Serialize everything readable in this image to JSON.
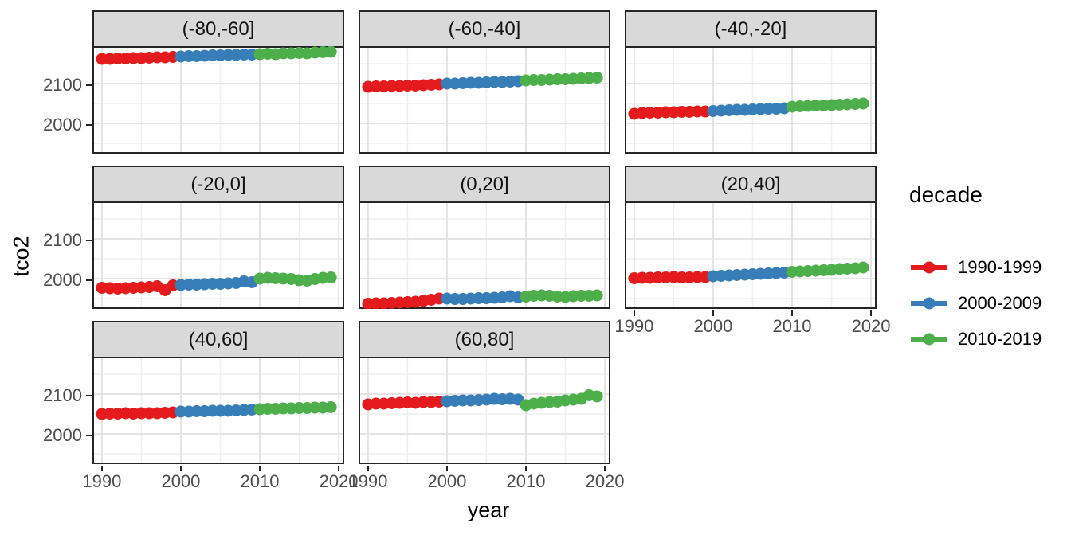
{
  "chart_data": {
    "type": "scatter",
    "title": "",
    "xlabel": "year",
    "ylabel": "tco2",
    "grid": true,
    "legend": {
      "title": "decade",
      "position": "right"
    },
    "xlim": [
      1988.8,
      2020.7
    ],
    "ylim": [
      1924,
      2194
    ],
    "x_ticks": [
      {
        "value": 1990,
        "label": "1990"
      },
      {
        "value": 2000,
        "label": "2000"
      },
      {
        "value": 2010,
        "label": "2010"
      },
      {
        "value": 2020,
        "label": "2020"
      }
    ],
    "y_ticks": [
      {
        "value": 2100,
        "label": "2100"
      },
      {
        "value": 2000,
        "label": "2000"
      }
    ],
    "x_minor_breaks": [
      1995,
      2005,
      2015
    ],
    "y_minor_breaks": [
      1950,
      2050,
      2150
    ],
    "years": [
      1990,
      1991,
      1992,
      1993,
      1994,
      1995,
      1996,
      1997,
      1998,
      1999,
      2000,
      2001,
      2002,
      2003,
      2004,
      2005,
      2006,
      2007,
      2008,
      2009,
      2010,
      2011,
      2012,
      2013,
      2014,
      2015,
      2016,
      2017,
      2018,
      2019
    ],
    "decades": [
      {
        "label": "1990-1999",
        "start": 1990,
        "end": 1999,
        "color": "#E41A1C"
      },
      {
        "label": "2000-2009",
        "start": 2000,
        "end": 2009,
        "color": "#377EB8"
      },
      {
        "label": "2010-2019",
        "start": 2010,
        "end": 2019,
        "color": "#4DAF4A"
      }
    ],
    "facets": [
      {
        "label": "(-80,-60]",
        "values": [
          2162,
          2162,
          2163,
          2163,
          2164,
          2164,
          2165,
          2166,
          2166,
          2167,
          2168,
          2169,
          2169,
          2170,
          2171,
          2171,
          2172,
          2172,
          2173,
          2173,
          2174,
          2175,
          2174,
          2176,
          2176,
          2177,
          2176,
          2178,
          2179,
          2180
        ]
      },
      {
        "label": "(-60,-40]",
        "values": [
          2092,
          2093,
          2093,
          2094,
          2094,
          2095,
          2095,
          2096,
          2097,
          2098,
          2100,
          2100,
          2101,
          2102,
          2102,
          2103,
          2104,
          2104,
          2105,
          2106,
          2108,
          2109,
          2109,
          2110,
          2111,
          2111,
          2112,
          2113,
          2114,
          2115
        ]
      },
      {
        "label": "(-40,-20]",
        "values": [
          2024,
          2026,
          2027,
          2027,
          2028,
          2028,
          2029,
          2029,
          2030,
          2030,
          2031,
          2032,
          2033,
          2034,
          2034,
          2035,
          2036,
          2037,
          2037,
          2038,
          2042,
          2043,
          2044,
          2045,
          2045,
          2046,
          2047,
          2048,
          2049,
          2050
        ]
      },
      {
        "label": "(-20,0]",
        "values": [
          1977,
          1976,
          1975,
          1976,
          1977,
          1978,
          1979,
          1981,
          1971,
          1983,
          1984,
          1985,
          1985,
          1986,
          1987,
          1987,
          1988,
          1989,
          1993,
          1991,
          2000,
          2002,
          2001,
          2000,
          1999,
          1996,
          1995,
          1999,
          2002,
          2003
        ]
      },
      {
        "label": "(0,20]",
        "values": [
          1937,
          1938,
          1938,
          1939,
          1940,
          1941,
          1942,
          1944,
          1947,
          1950,
          1950,
          1949,
          1949,
          1950,
          1951,
          1951,
          1952,
          1953,
          1956,
          1953,
          1955,
          1957,
          1958,
          1957,
          1955,
          1954,
          1956,
          1957,
          1957,
          1958
        ]
      },
      {
        "label": "(20,40]",
        "values": [
          2001,
          2002,
          2002,
          2003,
          2003,
          2004,
          2003,
          2003,
          2004,
          2004,
          2006,
          2007,
          2008,
          2009,
          2010,
          2011,
          2012,
          2013,
          2014,
          2015,
          2017,
          2018,
          2019,
          2020,
          2021,
          2022,
          2024,
          2025,
          2026,
          2028
        ]
      },
      {
        "label": "(40,60]",
        "values": [
          2050,
          2051,
          2051,
          2052,
          2051,
          2052,
          2052,
          2052,
          2053,
          2054,
          2056,
          2056,
          2057,
          2057,
          2058,
          2058,
          2058,
          2059,
          2060,
          2061,
          2062,
          2063,
          2063,
          2064,
          2064,
          2065,
          2065,
          2066,
          2066,
          2067
        ]
      },
      {
        "label": "(60,80]",
        "values": [
          2074,
          2076,
          2076,
          2077,
          2078,
          2079,
          2078,
          2080,
          2080,
          2081,
          2082,
          2083,
          2084,
          2084,
          2085,
          2086,
          2088,
          2087,
          2088,
          2086,
          2072,
          2076,
          2078,
          2080,
          2081,
          2084,
          2086,
          2088,
          2097,
          2094
        ]
      }
    ]
  }
}
